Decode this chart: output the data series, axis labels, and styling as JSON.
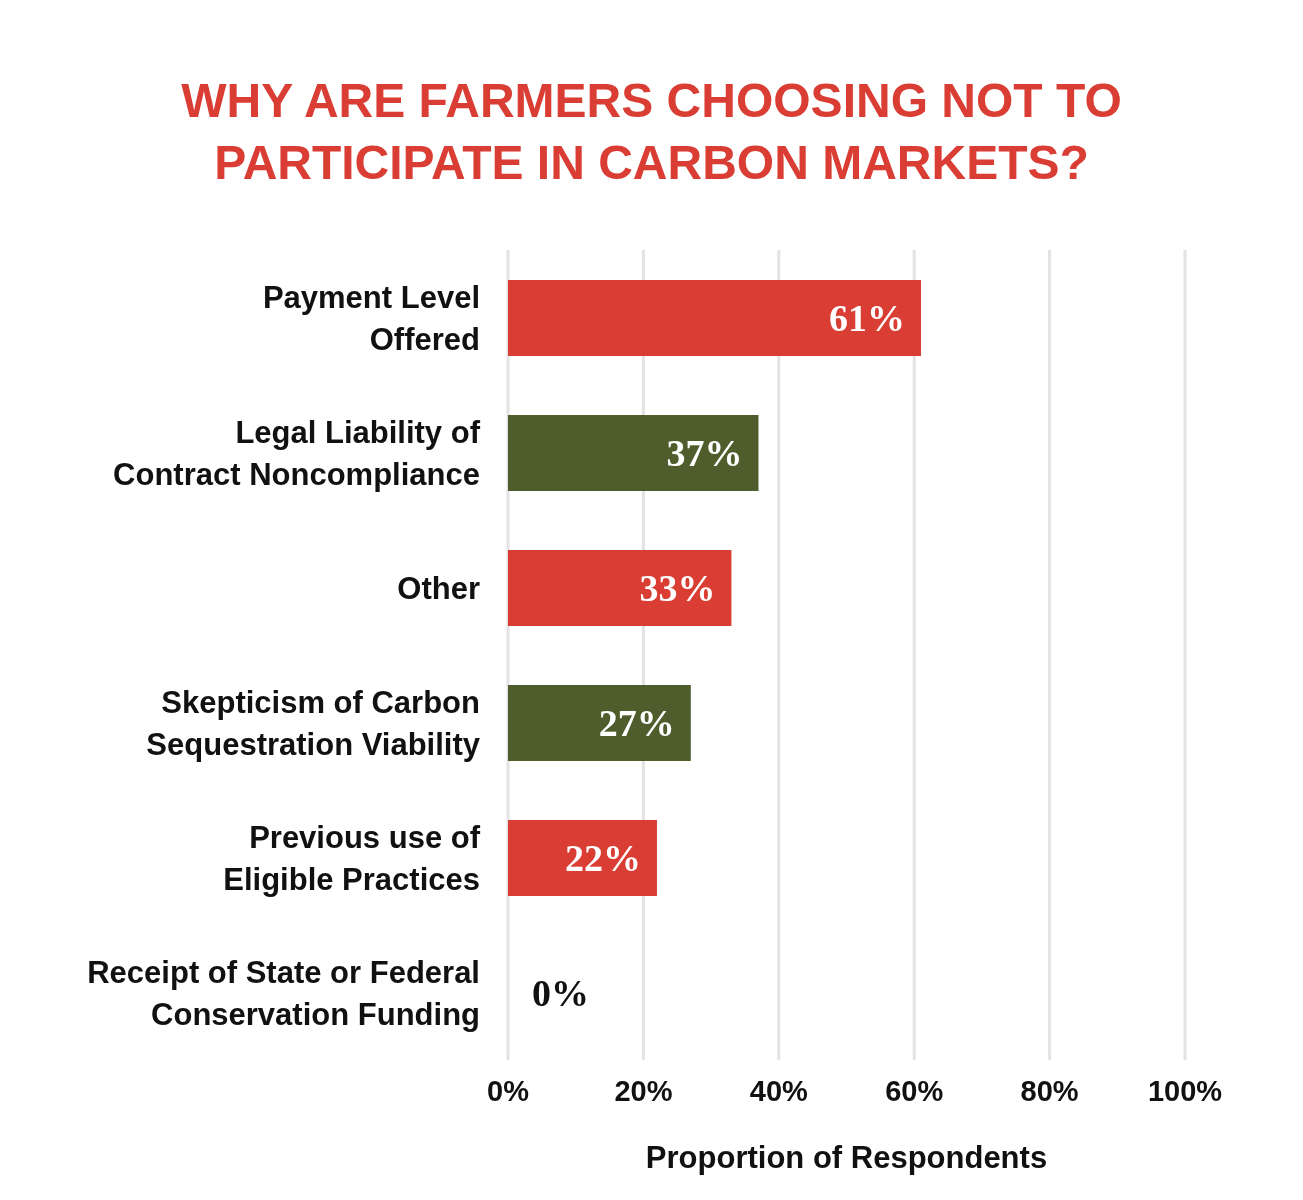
{
  "chart_data": {
    "type": "bar",
    "orientation": "horizontal",
    "title": "WHY ARE FARMERS CHOOSING NOT TO PARTICIPATE IN CARBON MARKETS?",
    "xlabel": "Proportion of Respondents",
    "categories": [
      "Payment Level Offered",
      "Legal Liability of Contract Noncompliance",
      "Other",
      "Skepticism of Carbon Sequestration Viability",
      "Previous use of Eligible Practices",
      "Receipt of State or Federal Conservation Funding"
    ],
    "values": [
      61,
      37,
      33,
      27,
      22,
      0
    ],
    "colors": [
      "#d93d33",
      "#4f5d2d",
      "#d93d33",
      "#4f5d2d",
      "#d93d33",
      "#d93d33"
    ],
    "value_labels": [
      "61%",
      "37%",
      "33%",
      "27%",
      "22%",
      "0%"
    ],
    "xlim": [
      0,
      100
    ],
    "xticks": [
      {
        "value": 0,
        "label": "0%"
      },
      {
        "value": 20,
        "label": "20%"
      },
      {
        "value": 40,
        "label": "40%"
      },
      {
        "value": 60,
        "label": "60%"
      },
      {
        "value": 80,
        "label": "80%"
      },
      {
        "value": 100,
        "label": "100%"
      }
    ],
    "grid": "x",
    "legend": false
  }
}
